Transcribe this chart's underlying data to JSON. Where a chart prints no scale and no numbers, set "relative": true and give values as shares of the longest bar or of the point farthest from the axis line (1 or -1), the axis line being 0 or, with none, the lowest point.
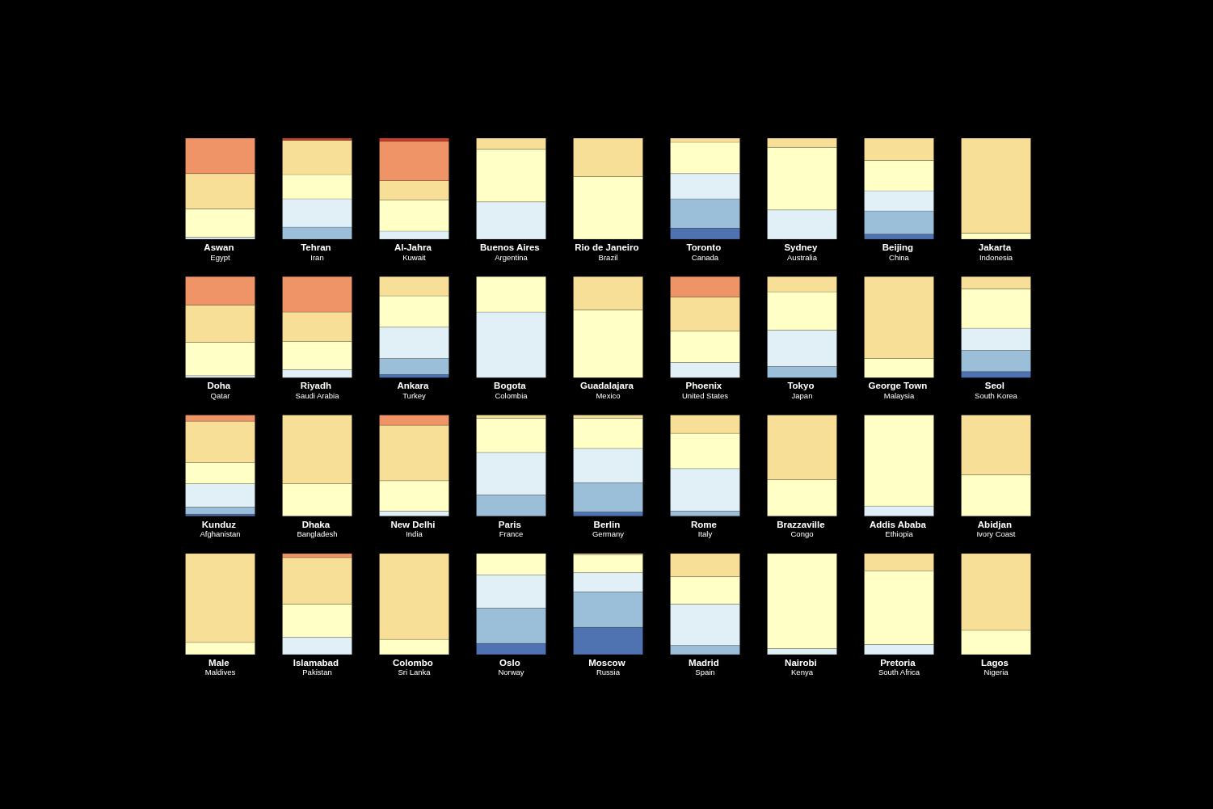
{
  "chart_data": [
    {
      "type": "bar",
      "stacked": true,
      "relative": true,
      "categories": [
        "Aswan\nEgypt",
        "Tehran\nIran",
        "Al-Jahra\nKuwait",
        "Buenos Aires\nArgentina",
        "Rio de Janeiro\nBrazil",
        "Toronto\nCanada",
        "Sydney\nAustralia",
        "Beijing\nChina",
        "Jakarta\nIndonesia"
      ],
      "series": [
        {
          "color": "#4f73b0",
          "values": [
            null,
            null,
            null,
            null,
            null,
            0.11,
            null,
            0.05,
            null
          ]
        },
        {
          "color": "#9bbfd9",
          "values": [
            null,
            0.12,
            null,
            null,
            null,
            0.29,
            null,
            0.23,
            null
          ]
        },
        {
          "color": "#e1eff7",
          "values": [
            0.02,
            0.28,
            0.08,
            0.37,
            null,
            0.25,
            0.29,
            0.2,
            null
          ]
        },
        {
          "color": "#ffffc6",
          "values": [
            0.28,
            0.24,
            0.31,
            0.52,
            0.62,
            0.31,
            0.62,
            0.3,
            0.06
          ]
        },
        {
          "color": "#f8df97",
          "values": [
            0.35,
            0.34,
            0.19,
            0.11,
            0.38,
            0.04,
            0.09,
            0.22,
            0.94
          ]
        },
        {
          "color": "#ee9466",
          "values": [
            0.35,
            null,
            0.39,
            null,
            null,
            null,
            null,
            null,
            null
          ]
        },
        {
          "color": "#cf3f2b",
          "values": [
            null,
            0.02,
            0.03,
            null,
            null,
            null,
            null,
            null,
            null
          ]
        }
      ]
    },
    {
      "type": "bar",
      "stacked": true,
      "relative": true,
      "categories": [
        "Doha\nQatar",
        "Riyadh\nSaudi Arabia",
        "Ankara\nTurkey",
        "Bogota\nColombia",
        "Guadalajara\nMexico",
        "Phoenix\nUnited States",
        "Tokyo\nJapan",
        "George Town\nMalaysia",
        "Seol\nSouth Korea"
      ],
      "series": [
        {
          "color": "#4f73b0",
          "values": [
            null,
            null,
            0.03,
            null,
            null,
            null,
            null,
            null,
            0.06
          ]
        },
        {
          "color": "#9bbfd9",
          "values": [
            null,
            null,
            0.16,
            null,
            null,
            null,
            0.11,
            null,
            0.21
          ]
        },
        {
          "color": "#e1eff7",
          "values": [
            0.02,
            0.08,
            0.31,
            0.65,
            null,
            0.15,
            0.36,
            null,
            0.22
          ]
        },
        {
          "color": "#ffffc6",
          "values": [
            0.33,
            0.28,
            0.31,
            0.35,
            0.67,
            0.31,
            0.38,
            0.19,
            0.39
          ]
        },
        {
          "color": "#f8df97",
          "values": [
            0.37,
            0.29,
            0.19,
            null,
            0.33,
            0.34,
            0.15,
            0.81,
            0.12
          ]
        },
        {
          "color": "#ee9466",
          "values": [
            0.28,
            0.35,
            null,
            null,
            null,
            0.2,
            null,
            null,
            null
          ]
        }
      ]
    },
    {
      "type": "bar",
      "stacked": true,
      "relative": true,
      "categories": [
        "Kunduz\nAfghanistan",
        "Dhaka\nBangladesh",
        "New Delhi\nIndia",
        "Paris\nFrance",
        "Berlin\nGermany",
        "Rome\nItaly",
        "Brazzaville\nCongo",
        "Addis Ababa\nEthiopia",
        "Abidjan\nIvory Coast"
      ],
      "series": [
        {
          "color": "#4f73b0",
          "values": [
            0.02,
            null,
            null,
            null,
            0.04,
            null,
            null,
            null,
            null
          ]
        },
        {
          "color": "#9bbfd9",
          "values": [
            0.07,
            null,
            null,
            0.21,
            0.29,
            0.05,
            null,
            null,
            null
          ]
        },
        {
          "color": "#e1eff7",
          "values": [
            0.23,
            null,
            0.05,
            0.42,
            0.34,
            0.42,
            null,
            0.1,
            null
          ]
        },
        {
          "color": "#ffffc6",
          "values": [
            0.21,
            0.32,
            0.3,
            0.34,
            0.3,
            0.35,
            0.36,
            0.9,
            0.41
          ]
        },
        {
          "color": "#f8df97",
          "values": [
            0.41,
            0.68,
            0.55,
            0.03,
            0.03,
            0.18,
            0.64,
            null,
            0.59
          ]
        },
        {
          "color": "#ee9466",
          "values": [
            0.06,
            null,
            0.1,
            null,
            null,
            null,
            null,
            null,
            null
          ]
        }
      ]
    },
    {
      "type": "bar",
      "stacked": true,
      "relative": true,
      "categories": [
        "Male\nMaldives",
        "Islamabad\nPakistan",
        "Colombo\nSri Lanka",
        "Oslo\nNorway",
        "Moscow\nRussia",
        "Madrid\nSpain",
        "Nairobi\nKenya",
        "Pretoria\nSouth Africa",
        "Lagos\nNigeria"
      ],
      "series": [
        {
          "color": "#4f73b0",
          "values": [
            null,
            null,
            null,
            0.11,
            0.27,
            null,
            null,
            null,
            null
          ]
        },
        {
          "color": "#9bbfd9",
          "values": [
            null,
            null,
            null,
            0.35,
            0.35,
            0.09,
            null,
            null,
            null
          ]
        },
        {
          "color": "#e1eff7",
          "values": [
            null,
            0.17,
            null,
            0.33,
            0.19,
            0.41,
            0.06,
            0.1,
            null
          ]
        },
        {
          "color": "#ffffc6",
          "values": [
            0.12,
            0.33,
            0.15,
            0.21,
            0.18,
            0.27,
            0.94,
            0.73,
            0.24
          ]
        },
        {
          "color": "#f8df97",
          "values": [
            0.88,
            0.46,
            0.85,
            null,
            0.01,
            0.23,
            null,
            0.17,
            0.76
          ]
        },
        {
          "color": "#ee9466",
          "values": [
            null,
            0.04,
            null,
            null,
            null,
            null,
            null,
            null,
            null
          ]
        }
      ]
    }
  ]
}
